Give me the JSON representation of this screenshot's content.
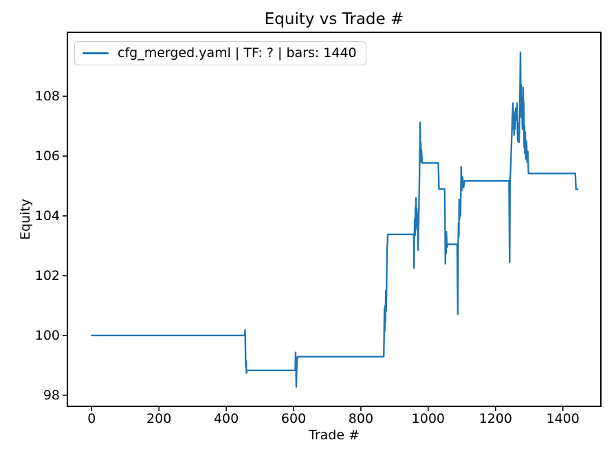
{
  "chart_data": {
    "type": "line",
    "title": "Equity vs Trade #",
    "xlabel": "Trade #",
    "ylabel": "Equity",
    "grid": false,
    "legend_position": "upper left",
    "line_color": "#1f77b4",
    "axis_color": "#000000",
    "legend_border_color": "#cccccc",
    "xlim": [
      -72,
      1513
    ],
    "ylim": [
      97.63,
      110.14
    ],
    "xticks": [
      0,
      200,
      400,
      600,
      800,
      1000,
      1200,
      1400
    ],
    "yticks": [
      98,
      100,
      102,
      104,
      106,
      108
    ],
    "series": [
      {
        "name": "cfg_merged.yaml | TF: ? | bars: 1440",
        "color": "#1f77b4",
        "points": [
          [
            0,
            100
          ],
          [
            455,
            100
          ],
          [
            456,
            100.18
          ],
          [
            457,
            99.6
          ],
          [
            458,
            98.95
          ],
          [
            459,
            99.15
          ],
          [
            460,
            98.74
          ],
          [
            462,
            98.83
          ],
          [
            605,
            98.83
          ],
          [
            606,
            99.43
          ],
          [
            607,
            99.1
          ],
          [
            608,
            98.28
          ],
          [
            610,
            99.15
          ],
          [
            612,
            99.29
          ],
          [
            868,
            99.29
          ],
          [
            869,
            100.0
          ],
          [
            870,
            100.9
          ],
          [
            871,
            100.15
          ],
          [
            872,
            101.0
          ],
          [
            873,
            100.45
          ],
          [
            874,
            101.49
          ],
          [
            875,
            100.8
          ],
          [
            876,
            101.3
          ],
          [
            877,
            102.3
          ],
          [
            878,
            102.95
          ],
          [
            879,
            103.1
          ],
          [
            880,
            103.38
          ],
          [
            957,
            103.38
          ],
          [
            958,
            102.25
          ],
          [
            959,
            103.4
          ],
          [
            960,
            103.9
          ],
          [
            961,
            103.35
          ],
          [
            962,
            104.32
          ],
          [
            963,
            103.56
          ],
          [
            964,
            104.6
          ],
          [
            965,
            103.7
          ],
          [
            966,
            104.25
          ],
          [
            968,
            103.9
          ],
          [
            970,
            102.85
          ],
          [
            972,
            104.0
          ],
          [
            974,
            105.3
          ],
          [
            976,
            107.13
          ],
          [
            977,
            105.95
          ],
          [
            978,
            106.46
          ],
          [
            979,
            105.8
          ],
          [
            980,
            106.2
          ],
          [
            982,
            105.77
          ],
          [
            1030,
            105.77
          ],
          [
            1032,
            104.9
          ],
          [
            1049,
            104.9
          ],
          [
            1050,
            103.9
          ],
          [
            1051,
            102.4
          ],
          [
            1052,
            103.35
          ],
          [
            1053,
            102.75
          ],
          [
            1054,
            103.47
          ],
          [
            1056,
            102.95
          ],
          [
            1058,
            103.05
          ],
          [
            1086,
            103.05
          ],
          [
            1088,
            100.71
          ],
          [
            1089,
            102.9
          ],
          [
            1090,
            103.75
          ],
          [
            1091,
            103.3
          ],
          [
            1092,
            104.55
          ],
          [
            1093,
            103.9
          ],
          [
            1094,
            104.3
          ],
          [
            1096,
            104.0
          ],
          [
            1098,
            105.63
          ],
          [
            1100,
            104.85
          ],
          [
            1102,
            105.3
          ],
          [
            1105,
            104.95
          ],
          [
            1108,
            105.17
          ],
          [
            1240,
            105.17
          ],
          [
            1242,
            102.44
          ],
          [
            1243,
            105.1
          ],
          [
            1246,
            105.9
          ],
          [
            1248,
            106.6
          ],
          [
            1250,
            107.3
          ],
          [
            1252,
            107.77
          ],
          [
            1253,
            106.9
          ],
          [
            1254,
            107.5
          ],
          [
            1255,
            106.7
          ],
          [
            1256,
            107.4
          ],
          [
            1258,
            106.9
          ],
          [
            1260,
            107.6
          ],
          [
            1262,
            107.2
          ],
          [
            1264,
            107.77
          ],
          [
            1266,
            106.5
          ],
          [
            1268,
            107.1
          ],
          [
            1270,
            106.46
          ],
          [
            1272,
            107.5
          ],
          [
            1274,
            109.47
          ],
          [
            1275,
            107.9
          ],
          [
            1276,
            108.39
          ],
          [
            1277,
            107.3
          ],
          [
            1278,
            107.9
          ],
          [
            1280,
            106.9
          ],
          [
            1282,
            108.3
          ],
          [
            1283,
            107.2
          ],
          [
            1284,
            107.8
          ],
          [
            1285,
            106.3
          ],
          [
            1286,
            107.0
          ],
          [
            1287,
            106.1
          ],
          [
            1288,
            106.8
          ],
          [
            1290,
            105.9
          ],
          [
            1292,
            106.5
          ],
          [
            1294,
            105.8
          ],
          [
            1296,
            106.15
          ],
          [
            1298,
            105.42
          ],
          [
            1437,
            105.42
          ],
          [
            1439,
            104.89
          ],
          [
            1444,
            104.89
          ]
        ]
      }
    ]
  }
}
